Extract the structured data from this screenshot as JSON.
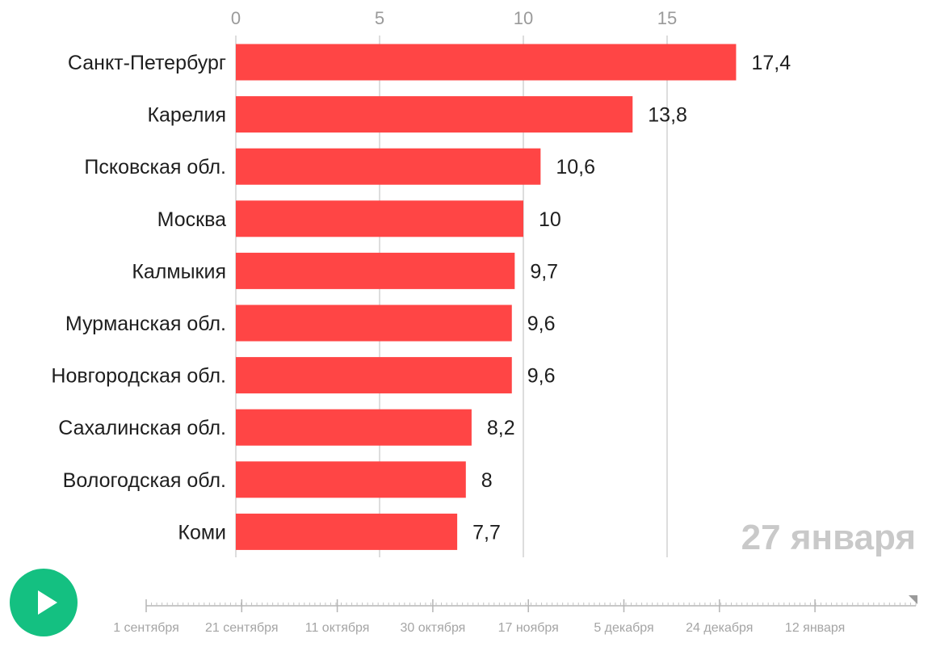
{
  "chart_data": {
    "type": "bar",
    "orientation": "horizontal",
    "categories": [
      "Санкт-Петербург",
      "Карелия",
      "Псковская обл.",
      "Москва",
      "Калмыкия",
      "Мурманская обл.",
      "Новгородская обл.",
      "Сахалинская обл.",
      "Вологодская обл.",
      "Коми"
    ],
    "values": [
      17.4,
      13.8,
      10.6,
      10,
      9.7,
      9.6,
      9.6,
      8.2,
      8,
      7.7
    ],
    "value_labels": [
      "17,4",
      "13,8",
      "10,6",
      "10",
      "9,7",
      "9,6",
      "9,6",
      "8,2",
      "8",
      "7,7"
    ],
    "xticks": [
      0,
      5,
      10,
      15
    ],
    "xtick_labels": [
      "0",
      "5",
      "10",
      "15"
    ],
    "xaxis_position": "top",
    "xlim": [
      0,
      17.4
    ],
    "grid": true,
    "bar_color": "#ff4545",
    "grid_color": "#dddddd",
    "current_date": "27 января"
  },
  "timeline": {
    "labels": [
      "1 сентября",
      "21 сентября",
      "11 октября",
      "30 октября",
      "17 ноября",
      "5 декабря",
      "24 декабря",
      "12 января"
    ],
    "progress": 1.0
  },
  "play_button": {
    "icon": "play-icon",
    "color": "#14c081"
  }
}
